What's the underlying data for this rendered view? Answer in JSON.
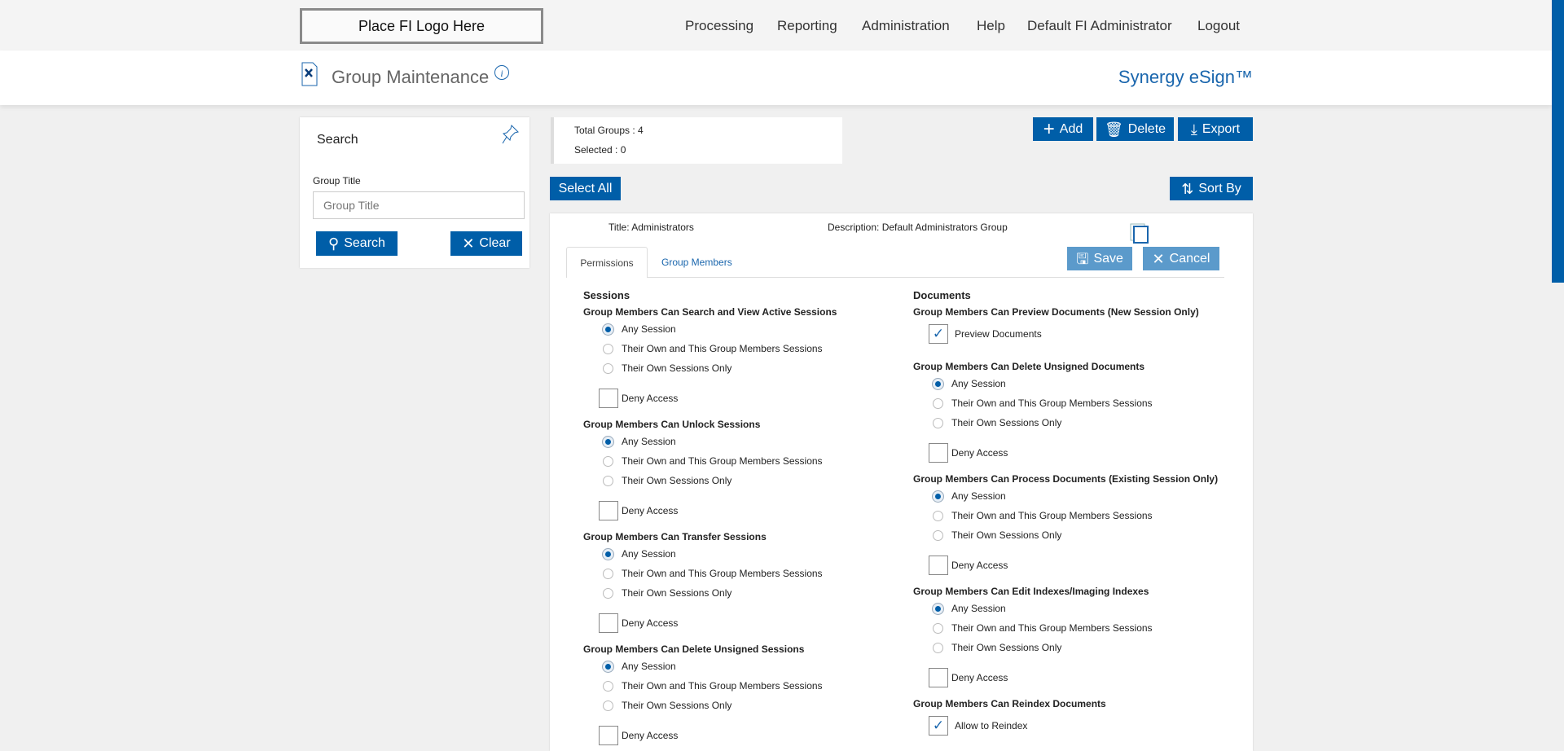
{
  "header": {
    "logo": "Place FI Logo Here",
    "nav": [
      "Processing",
      "Reporting",
      "Administration",
      "Help",
      "Default FI Administrator",
      "Logout"
    ]
  },
  "page": {
    "title": "Group Maintenance",
    "brand": "Synergy eSign™"
  },
  "search": {
    "title": "Search",
    "field_label": "Group Title",
    "placeholder": "Group Title",
    "search_label": "Search",
    "clear_label": "Clear"
  },
  "stats": {
    "total": "Total Groups : 4",
    "selected": "Selected : 0"
  },
  "toolbar": {
    "add": "Add",
    "delete": "Delete",
    "export": "Export",
    "select_all": "Select All",
    "sort_by": "Sort By"
  },
  "group": {
    "title": "Title:  Administrators",
    "description": "Description: Default Administrators Group",
    "tabs": [
      "Permissions",
      "Group Members"
    ],
    "save": "Save",
    "cancel": "Cancel"
  },
  "colors": {
    "primary": "#005ea8",
    "disabled_button": "#5b9acb"
  },
  "permissions": {
    "sessions": {
      "heading": "Sessions",
      "groups": [
        {
          "title": "Group Members Can Search and View Active Sessions",
          "options": [
            "Any Session",
            "Their Own and This Group Members Sessions",
            "Their Own Sessions Only"
          ],
          "selected": 0,
          "deny": "Deny Access",
          "deny_checked": false
        },
        {
          "title": "Group Members Can Unlock Sessions",
          "options": [
            "Any Session",
            "Their Own and This Group Members Sessions",
            "Their Own Sessions Only"
          ],
          "selected": 0,
          "deny": "Deny Access",
          "deny_checked": false
        },
        {
          "title": "Group Members Can Transfer Sessions",
          "options": [
            "Any Session",
            "Their Own and This Group Members Sessions",
            "Their Own Sessions Only"
          ],
          "selected": 0,
          "deny": "Deny Access",
          "deny_checked": false
        },
        {
          "title": "Group Members Can Delete Unsigned Sessions",
          "options": [
            "Any Session",
            "Their Own and This Group Members Sessions",
            "Their Own Sessions Only"
          ],
          "selected": 0,
          "deny": "Deny Access",
          "deny_checked": false
        }
      ]
    },
    "documents": {
      "heading": "Documents",
      "groups": [
        {
          "title": "Group Members Can Preview Documents (New Session Only)",
          "check": "Preview Documents",
          "checked": true
        },
        {
          "title": "Group Members Can Delete Unsigned Documents",
          "options": [
            "Any Session",
            "Their Own and This Group Members Sessions",
            "Their Own Sessions Only"
          ],
          "selected": 0,
          "deny": "Deny Access",
          "deny_checked": false
        },
        {
          "title": "Group Members Can Process Documents (Existing Session Only)",
          "options": [
            "Any Session",
            "Their Own and This Group Members Sessions",
            "Their Own Sessions Only"
          ],
          "selected": 0,
          "deny": "Deny Access",
          "deny_checked": false
        },
        {
          "title": "Group Members Can Edit Indexes/Imaging Indexes",
          "options": [
            "Any Session",
            "Their Own and This Group Members Sessions",
            "Their Own Sessions Only"
          ],
          "selected": 0,
          "deny": "Deny Access",
          "deny_checked": false
        },
        {
          "title": "Group Members Can Reindex Documents",
          "check": "Allow to Reindex",
          "checked": true
        }
      ]
    }
  }
}
